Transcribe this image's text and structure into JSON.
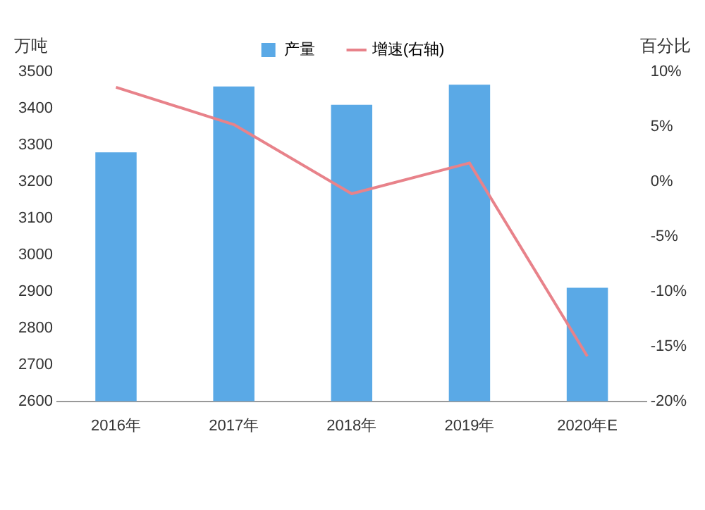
{
  "chart_data": {
    "type": "bar",
    "ylabel": "万吨",
    "y2label": "百分比",
    "categories": [
      "2016年",
      "2017年",
      "2018年",
      "2019年",
      "2020年E"
    ],
    "series": [
      {
        "name": "产量",
        "color": "#5aa9e6",
        "values": [
          3280,
          3460,
          3410,
          3465,
          2910
        ]
      },
      {
        "name": "增速(右轴)",
        "type": "line",
        "axis": "y2",
        "color": "#e8828a",
        "values": [
          8.6,
          5.2,
          -1.1,
          1.7,
          -15.9
        ]
      }
    ],
    "ylim": [
      2600,
      3500
    ],
    "yticks": [
      2600,
      2700,
      2800,
      2900,
      3000,
      3100,
      3200,
      3300,
      3400,
      3500
    ],
    "y2lim": [
      -20,
      10
    ],
    "y2ticks": [
      {
        "value": -20,
        "label": "-20%"
      },
      {
        "value": -15,
        "label": "-15%"
      },
      {
        "value": -10,
        "label": "-10%"
      },
      {
        "value": -5,
        "label": "-5%"
      },
      {
        "value": 0,
        "label": "0%"
      },
      {
        "value": 5,
        "label": "5%"
      },
      {
        "value": 10,
        "label": "10%"
      }
    ],
    "legend": "top",
    "grid": false,
    "marker": "none"
  }
}
